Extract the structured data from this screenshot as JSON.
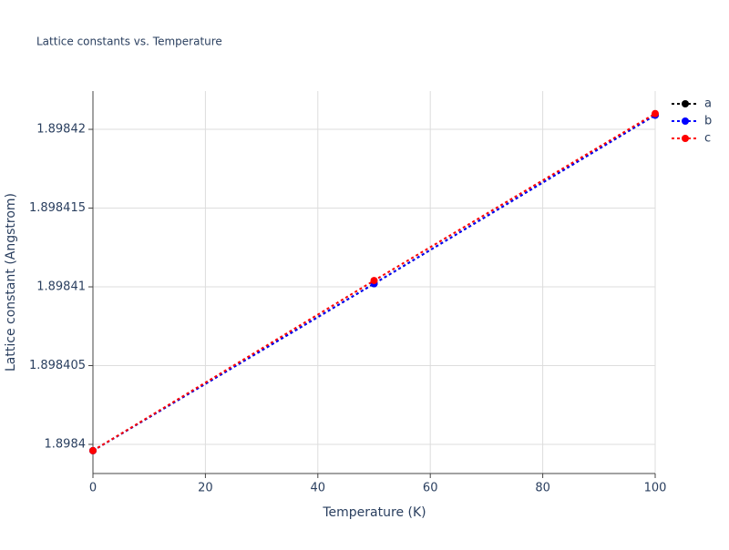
{
  "chart_data": {
    "type": "line",
    "title": "Lattice constants vs. Temperature",
    "x_label": "Temperature (K)",
    "y_label": "Lattice constant (Angstrom)",
    "x": [
      0,
      50,
      100
    ],
    "series": [
      {
        "name": "a",
        "color": "#000000",
        "values": [
          1.8983996,
          1.8984102,
          1.8984209
        ]
      },
      {
        "name": "b",
        "color": "#0000ff",
        "values": [
          1.8983996,
          1.8984102,
          1.8984209
        ]
      },
      {
        "name": "c",
        "color": "#ff0000",
        "values": [
          1.8983996,
          1.8984104,
          1.898421
        ]
      }
    ],
    "xlim": [
      0,
      100
    ],
    "xticks": [
      0,
      20,
      40,
      60,
      80,
      100
    ],
    "ylim": [
      1.89839815,
      1.89842243
    ],
    "yticks": [
      1.8984,
      1.898405,
      1.89841,
      1.898415,
      1.89842
    ],
    "grid": true,
    "line_style": "dotted",
    "legend": "top-right"
  }
}
